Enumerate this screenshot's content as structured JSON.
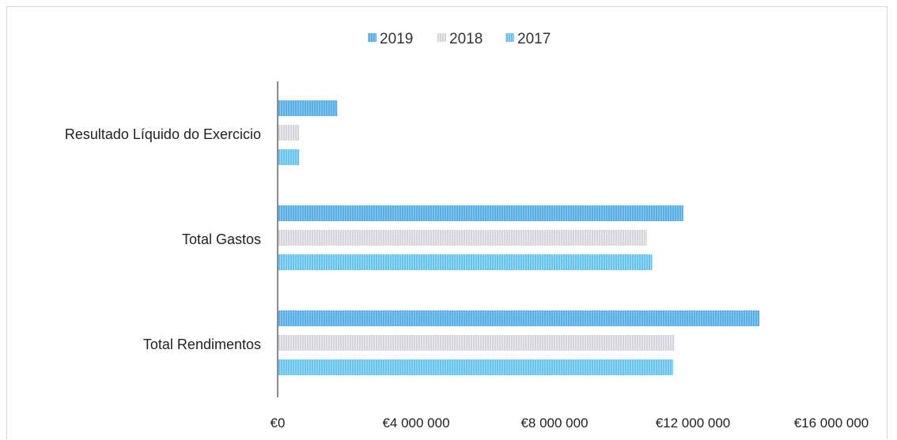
{
  "chart_data": {
    "type": "bar",
    "orientation": "horizontal",
    "categories": [
      "Resultado Líquido do Exercicio",
      "Total Gastos",
      "Total Rendimentos"
    ],
    "series": [
      {
        "name": "2019",
        "values": [
          1700000,
          11700000,
          13900000
        ]
      },
      {
        "name": "2018",
        "values": [
          600000,
          10650000,
          11450000
        ]
      },
      {
        "name": "2017",
        "values": [
          600000,
          10800000,
          11400000
        ]
      }
    ],
    "xlim": [
      0,
      16000000
    ],
    "xticks": [
      0,
      4000000,
      8000000,
      12000000,
      16000000
    ],
    "xtick_labels": [
      "€0",
      "€4 000 000",
      "€8 000 000",
      "€12 000 000",
      "€16 000 000"
    ],
    "title": "",
    "xlabel": "",
    "ylabel": "",
    "legend_position": "top",
    "grid": false,
    "colors": {
      "2019": "#5aaee6",
      "2018": "#d5d5dc",
      "2017": "#66c2ee"
    }
  }
}
